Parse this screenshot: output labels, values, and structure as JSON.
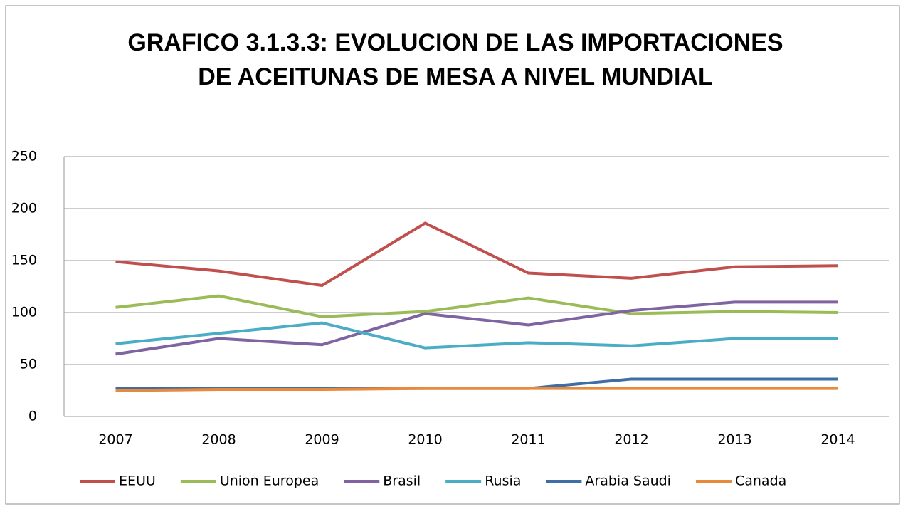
{
  "chart_data": {
    "type": "line",
    "title": [
      "GRAFICO 3.1.3.3: EVOLUCION DE LAS IMPORTACIONES",
      "DE ACEITUNAS DE MESA A NIVEL MUNDIAL"
    ],
    "categories": [
      "2007",
      "2008",
      "2009",
      "2010",
      "2011",
      "2012",
      "2013",
      "2014"
    ],
    "series": [
      {
        "name": "EEUU",
        "color": "#c0504d",
        "values": [
          149,
          140,
          126,
          186,
          138,
          133,
          144,
          145
        ]
      },
      {
        "name": "Union Europea",
        "color": "#9bbb59",
        "values": [
          105,
          116,
          96,
          101,
          114,
          99,
          101,
          100
        ]
      },
      {
        "name": "Brasil",
        "color": "#8064a2",
        "values": [
          60,
          75,
          69,
          99,
          88,
          102,
          110,
          110
        ]
      },
      {
        "name": "Rusia",
        "color": "#4bacc6",
        "values": [
          70,
          80,
          90,
          66,
          71,
          68,
          75,
          75
        ]
      },
      {
        "name": "Arabia Saudi",
        "color": "#3f6ea6",
        "values": [
          27,
          27,
          27,
          27,
          27,
          36,
          36,
          36
        ]
      },
      {
        "name": "Canada",
        "color": "#e8893c",
        "values": [
          25,
          26,
          26,
          27,
          27,
          27,
          27,
          27
        ]
      }
    ],
    "ylim": [
      0,
      250
    ],
    "yticks": [
      0,
      50,
      100,
      150,
      200,
      250
    ],
    "grid": true,
    "legend": "bottom"
  }
}
